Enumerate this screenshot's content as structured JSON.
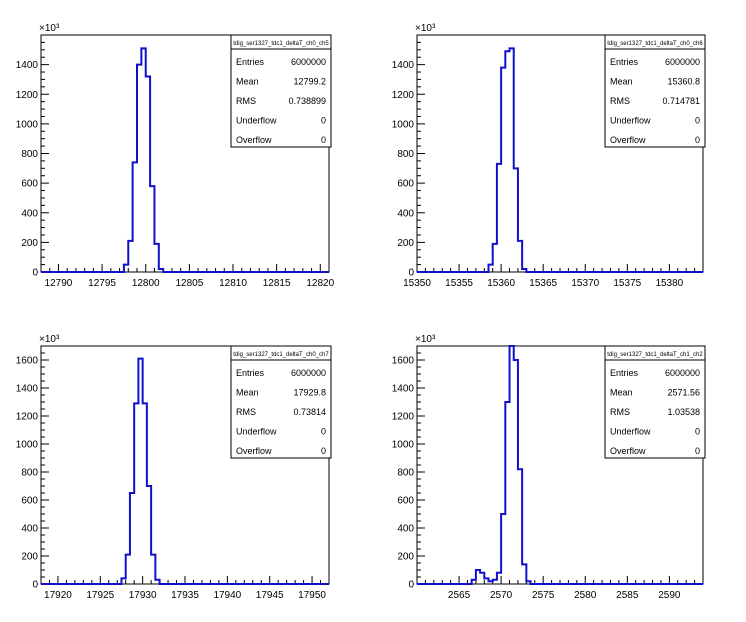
{
  "chart_data": [
    {
      "type": "histogram",
      "title": "",
      "xlabel": "",
      "ylabel": "",
      "y_multiplier_label": "×10³",
      "xlim": [
        12788,
        12821
      ],
      "ylim": [
        0,
        1600
      ],
      "x_ticks": [
        "12790",
        "12795",
        "12800",
        "12805",
        "12810",
        "12815",
        "12820"
      ],
      "y_ticks": [
        "0",
        "200",
        "400",
        "600",
        "800",
        "1000",
        "1200",
        "1400"
      ],
      "bin_width": 0.5,
      "bins": [
        {
          "x": 12797.5,
          "y": 50
        },
        {
          "x": 12798.0,
          "y": 210
        },
        {
          "x": 12798.5,
          "y": 740
        },
        {
          "x": 12799.0,
          "y": 1400
        },
        {
          "x": 12799.5,
          "y": 1510
        },
        {
          "x": 12800.0,
          "y": 1320
        },
        {
          "x": 12800.5,
          "y": 580
        },
        {
          "x": 12801.0,
          "y": 190
        },
        {
          "x": 12801.5,
          "y": 20
        }
      ],
      "stats": {
        "name": "tdig_ser1327_tdc1_deltaT_ch0_ch5",
        "rows": [
          {
            "label": "Entries",
            "value": "6000000"
          },
          {
            "label": "Mean",
            "value": "12799.2"
          },
          {
            "label": "RMS",
            "value": "0.738899"
          },
          {
            "label": "Underflow",
            "value": "0"
          },
          {
            "label": "Overflow",
            "value": "0"
          }
        ]
      }
    },
    {
      "type": "histogram",
      "title": "",
      "xlabel": "",
      "ylabel": "",
      "y_multiplier_label": "×10³",
      "xlim": [
        15350,
        15384
      ],
      "ylim": [
        0,
        1600
      ],
      "x_ticks": [
        "15350",
        "15355",
        "15360",
        "15365",
        "15370",
        "15375",
        "15380"
      ],
      "y_ticks": [
        "0",
        "200",
        "400",
        "600",
        "800",
        "1000",
        "1200",
        "1400"
      ],
      "bin_width": 0.5,
      "bins": [
        {
          "x": 15358.5,
          "y": 50
        },
        {
          "x": 15359.0,
          "y": 190
        },
        {
          "x": 15359.5,
          "y": 730
        },
        {
          "x": 15360.0,
          "y": 1380
        },
        {
          "x": 15360.5,
          "y": 1490
        },
        {
          "x": 15361.0,
          "y": 1510
        },
        {
          "x": 15361.5,
          "y": 700
        },
        {
          "x": 15362.0,
          "y": 210
        },
        {
          "x": 15362.5,
          "y": 20
        }
      ],
      "stats": {
        "name": "tdig_ser1327_tdc1_deltaT_ch0_ch6",
        "rows": [
          {
            "label": "Entries",
            "value": "6000000"
          },
          {
            "label": "Mean",
            "value": "15360.8"
          },
          {
            "label": "RMS",
            "value": "0.714781"
          },
          {
            "label": "Underflow",
            "value": "0"
          },
          {
            "label": "Overflow",
            "value": "0"
          }
        ]
      }
    },
    {
      "type": "histogram",
      "title": "",
      "xlabel": "",
      "ylabel": "",
      "y_multiplier_label": "×10³",
      "xlim": [
        17918,
        17952
      ],
      "ylim": [
        0,
        1700
      ],
      "x_ticks": [
        "17920",
        "17925",
        "17930",
        "17935",
        "17940",
        "17945",
        "17950"
      ],
      "y_ticks": [
        "0",
        "200",
        "400",
        "600",
        "800",
        "1000",
        "1200",
        "1400",
        "1600"
      ],
      "bin_width": 0.5,
      "bins": [
        {
          "x": 17927.5,
          "y": 40
        },
        {
          "x": 17928.0,
          "y": 210
        },
        {
          "x": 17928.5,
          "y": 650
        },
        {
          "x": 17929.0,
          "y": 1290
        },
        {
          "x": 17929.5,
          "y": 1610
        },
        {
          "x": 17930.0,
          "y": 1290
        },
        {
          "x": 17930.5,
          "y": 700
        },
        {
          "x": 17931.0,
          "y": 210
        },
        {
          "x": 17931.5,
          "y": 30
        }
      ],
      "stats": {
        "name": "tdig_ser1327_tdc1_deltaT_ch0_ch7",
        "rows": [
          {
            "label": "Entries",
            "value": "6000000"
          },
          {
            "label": "Mean",
            "value": "17929.8"
          },
          {
            "label": "RMS",
            "value": "0.73814"
          },
          {
            "label": "Underflow",
            "value": "0"
          },
          {
            "label": "Overflow",
            "value": "0"
          }
        ]
      }
    },
    {
      "type": "histogram",
      "title": "",
      "xlabel": "",
      "ylabel": "",
      "y_multiplier_label": "×10³",
      "xlim": [
        2560,
        2594
      ],
      "ylim": [
        0,
        1700
      ],
      "x_ticks": [
        "2565",
        "2570",
        "2575",
        "2580",
        "2585",
        "2590"
      ],
      "y_ticks": [
        "0",
        "200",
        "400",
        "600",
        "800",
        "1000",
        "1200",
        "1400",
        "1600"
      ],
      "bin_width": 0.5,
      "bins": [
        {
          "x": 2566.5,
          "y": 30
        },
        {
          "x": 2567.0,
          "y": 100
        },
        {
          "x": 2567.5,
          "y": 80
        },
        {
          "x": 2568.0,
          "y": 40
        },
        {
          "x": 2568.5,
          "y": 20
        },
        {
          "x": 2569.0,
          "y": 30
        },
        {
          "x": 2569.5,
          "y": 80
        },
        {
          "x": 2570.0,
          "y": 500
        },
        {
          "x": 2570.5,
          "y": 1300
        },
        {
          "x": 2571.0,
          "y": 1700
        },
        {
          "x": 2571.5,
          "y": 1600
        },
        {
          "x": 2572.0,
          "y": 820
        },
        {
          "x": 2572.5,
          "y": 140
        },
        {
          "x": 2573.0,
          "y": 20
        }
      ],
      "stats": {
        "name": "tdig_ser1327_tdc1_deltaT_ch1_ch2",
        "rows": [
          {
            "label": "Entries",
            "value": "6000000"
          },
          {
            "label": "Mean",
            "value": "2571.56"
          },
          {
            "label": "RMS",
            "value": "1.03538"
          },
          {
            "label": "Underflow",
            "value": "0"
          },
          {
            "label": "Overflow",
            "value": "0"
          }
        ]
      }
    }
  ],
  "colors": {
    "line": "#1010cc",
    "axis": "#000000",
    "background": "#ffffff"
  }
}
